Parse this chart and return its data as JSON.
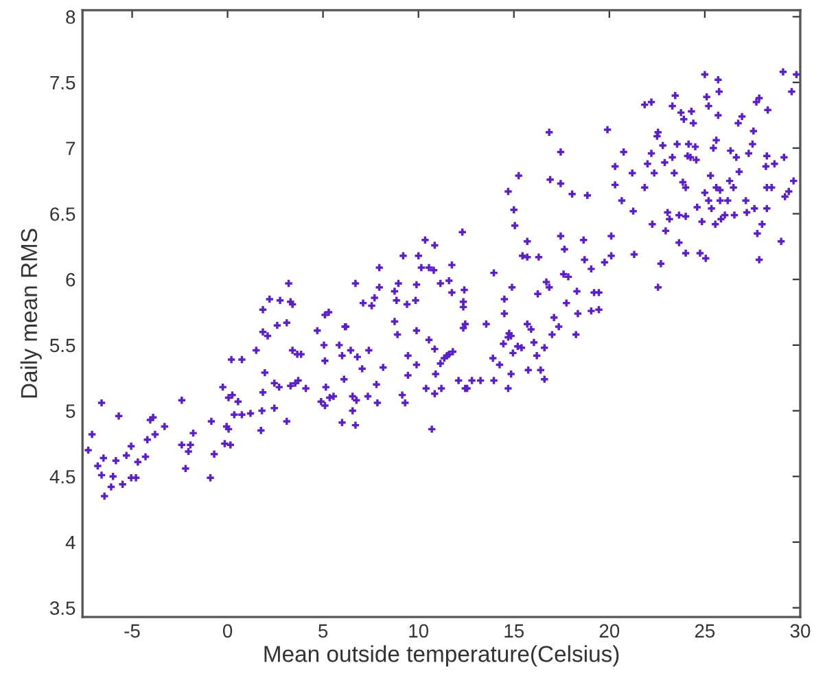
{
  "chart_data": {
    "type": "scatter",
    "xlabel": "Mean outside temperature(Celsius)",
    "ylabel": "Daily mean RMS",
    "xlim": [
      -7.6,
      30
    ],
    "ylim": [
      3.43,
      8.05
    ],
    "xticks": [
      -5,
      0,
      5,
      10,
      15,
      20,
      25,
      30
    ],
    "yticks": [
      3.5,
      4,
      4.5,
      5,
      5.5,
      6,
      6.5,
      7,
      7.5,
      8
    ],
    "grid": false,
    "marker": "cross",
    "series": [
      {
        "color": "#5b1fc4",
        "x": [
          -7.3,
          -7.1,
          -6.6,
          -6.8,
          -6.6,
          -6.5,
          -6.45,
          -6.1,
          -6.0,
          -5.85,
          -5.7,
          -5.5,
          -5.3,
          -5.05,
          -5.05,
          -4.8,
          -4.7,
          -4.3,
          -4.2,
          -4.05,
          -3.9,
          -3.8,
          -3.3,
          -2.4,
          -2.4,
          -2.2,
          -2.05,
          -1.95,
          -1.8,
          -0.9,
          -0.85,
          -0.7,
          -0.25,
          -0.05,
          0.05,
          -0.15,
          0.15,
          0.05,
          0.25,
          0.55,
          0.2,
          0.75,
          0.35,
          0.75,
          1.2,
          1.5,
          1.75,
          1.8,
          1.85,
          1.95,
          1.85,
          2.1,
          2.45,
          2.45,
          2.6,
          2.7,
          3.1,
          3.1,
          3.3,
          3.4,
          3.55,
          3.65,
          3.85,
          3.7,
          4.1,
          4.7,
          5.05,
          5.1,
          5.15,
          4.9,
          5.1,
          5.35,
          5.55,
          5.85,
          6.0,
          6.15,
          6.1,
          6.45,
          6.55,
          6.55,
          6.0,
          6.7,
          6.75,
          7.05,
          6.8,
          7.4,
          7.35,
          7.8,
          7.85,
          8.15,
          8.75,
          8.9,
          9.15,
          9.3,
          9.45,
          9.45,
          9.9,
          9.9,
          10.4,
          10.55,
          10.7,
          10.85,
          10.9,
          10.85,
          11.15,
          11.2,
          11.5,
          11.8,
          12.1,
          12.45,
          1.85,
          2.2,
          2.75,
          3.2,
          3.3,
          3.4,
          5.1,
          5.3,
          6.2,
          6.7,
          7.1,
          7.55,
          7.7,
          7.95,
          7.95,
          8.75,
          8.95,
          9.2,
          8.85,
          9.4,
          9.85,
          9.9,
          10.0,
          10.15,
          10.55,
          10.8,
          10.35,
          10.85,
          11.15,
          11.6,
          11.75,
          11.75,
          12.3,
          12.4,
          12.35,
          12.35,
          12.45,
          13.55,
          13.95,
          14.9,
          14.5,
          14.5,
          14.7,
          15.0,
          15.05,
          15.25,
          15.45,
          15.7,
          15.7,
          16.3,
          16.25,
          16.7,
          16.85,
          16.85,
          16.9,
          17.45,
          17.45,
          17.45,
          17.65,
          17.6,
          17.85,
          17.75,
          18.3,
          18.35,
          18.05,
          18.65,
          18.7,
          18.85,
          19.05,
          19.2,
          19.45,
          19.05,
          19.45,
          19.75,
          19.9,
          20.1,
          20.1,
          20.3,
          20.3,
          20.65,
          20.75,
          21.2,
          21.25,
          21.3,
          21.85,
          22.2,
          21.85,
          22.0,
          22.2,
          22.35,
          22.5,
          22.55,
          22.25,
          22.55,
          22.7,
          22.8,
          22.9,
          22.95,
          23.05,
          23.15,
          23.3,
          23.45,
          23.3,
          23.4,
          23.55,
          23.65,
          23.75,
          23.85,
          23.9,
          24.0,
          24.1,
          24.15,
          24.0,
          24.0,
          23.65,
          24.25,
          24.3,
          24.4,
          24.5,
          24.55,
          24.6,
          24.75,
          24.85,
          25.0,
          25.0,
          25.05,
          25.1,
          25.2,
          25.2,
          25.35,
          25.3,
          25.45,
          25.6,
          25.6,
          25.7,
          25.75,
          25.7,
          25.8,
          25.8,
          25.55,
          25.85,
          26.05,
          26.2,
          26.3,
          26.35,
          26.5,
          26.55,
          26.65,
          26.75,
          26.8,
          26.95,
          27.15,
          27.2,
          27.3,
          27.55,
          27.5,
          27.6,
          27.7,
          27.75,
          27.85,
          27.85,
          28.0,
          28.2,
          28.25,
          28.25,
          28.3,
          28.25,
          28.5,
          28.65,
          29.0,
          29.1,
          29.15,
          29.2,
          29.4,
          29.55,
          29.65,
          29.8,
          11.35,
          11.6,
          12.35,
          12.55,
          12.8,
          13.25,
          13.9,
          13.95,
          14.25,
          14.45,
          14.7,
          14.75,
          14.85,
          14.95,
          14.7,
          14.85,
          15.2,
          15.4,
          15.7,
          15.9,
          15.75,
          16.05,
          16.2,
          16.4,
          16.6,
          16.6,
          17.0,
          17.1,
          17.35,
          18.25
        ],
        "values": [
          4.7,
          4.82,
          5.06,
          4.58,
          4.51,
          4.64,
          4.35,
          4.42,
          4.5,
          4.62,
          4.96,
          4.44,
          4.66,
          4.73,
          4.49,
          4.49,
          4.61,
          4.65,
          4.78,
          4.93,
          4.95,
          4.82,
          4.88,
          5.08,
          4.74,
          4.56,
          4.69,
          4.74,
          4.83,
          4.49,
          4.92,
          4.67,
          5.18,
          4.88,
          4.86,
          4.75,
          4.74,
          5.1,
          5.12,
          5.07,
          5.39,
          5.39,
          4.97,
          4.97,
          4.98,
          5.46,
          4.85,
          5.0,
          5.14,
          5.29,
          5.6,
          5.57,
          5.21,
          5.02,
          5.65,
          5.18,
          5.67,
          4.92,
          5.19,
          5.46,
          5.21,
          5.43,
          5.43,
          5.23,
          5.17,
          5.61,
          5.5,
          5.38,
          5.18,
          5.07,
          5.04,
          5.1,
          5.11,
          5.5,
          5.42,
          5.64,
          5.24,
          5.46,
          5.11,
          5.0,
          4.91,
          4.89,
          5.08,
          5.32,
          5.41,
          5.46,
          5.11,
          5.2,
          5.06,
          5.33,
          5.68,
          5.58,
          5.12,
          5.06,
          5.42,
          5.27,
          5.61,
          5.35,
          5.17,
          5.54,
          4.86,
          5.47,
          5.28,
          5.13,
          5.36,
          5.17,
          5.42,
          5.45,
          5.23,
          5.17,
          5.77,
          5.85,
          5.84,
          5.97,
          5.83,
          5.81,
          5.73,
          5.75,
          5.64,
          5.97,
          5.82,
          5.8,
          5.86,
          5.94,
          6.09,
          5.91,
          5.97,
          6.18,
          5.84,
          5.81,
          5.84,
          5.96,
          6.18,
          6.09,
          6.09,
          6.07,
          6.3,
          6.26,
          5.97,
          5.99,
          6.11,
          5.9,
          6.36,
          5.92,
          5.83,
          5.79,
          5.66,
          5.66,
          6.05,
          5.94,
          5.85,
          5.74,
          6.67,
          6.53,
          6.41,
          6.79,
          6.18,
          6.29,
          6.17,
          6.17,
          5.89,
          5.98,
          5.94,
          7.12,
          6.76,
          6.97,
          6.73,
          6.33,
          6.23,
          6.04,
          6.02,
          5.82,
          5.91,
          5.74,
          6.65,
          6.3,
          6.15,
          6.64,
          6.08,
          5.9,
          5.9,
          5.76,
          5.77,
          6.13,
          7.14,
          6.33,
          6.18,
          6.86,
          6.72,
          6.6,
          6.97,
          6.81,
          6.52,
          6.19,
          7.33,
          7.35,
          6.7,
          6.88,
          6.96,
          6.81,
          7.09,
          7.12,
          6.42,
          5.94,
          6.12,
          7.02,
          6.89,
          6.37,
          6.51,
          6.46,
          7.32,
          7.4,
          6.93,
          6.81,
          7.03,
          6.49,
          7.27,
          6.74,
          7.22,
          6.7,
          6.94,
          7.03,
          6.48,
          6.2,
          6.28,
          6.93,
          7.28,
          7.19,
          7.01,
          6.91,
          6.55,
          6.2,
          6.44,
          7.56,
          6.66,
          6.16,
          7.39,
          7.32,
          6.6,
          6.54,
          6.79,
          7.0,
          7.06,
          6.7,
          7.52,
          7.43,
          7.25,
          6.6,
          6.68,
          6.42,
          6.46,
          6.49,
          6.6,
          6.75,
          6.98,
          6.7,
          6.49,
          6.93,
          7.19,
          6.82,
          7.24,
          6.6,
          6.51,
          6.96,
          7.13,
          7.03,
          6.54,
          7.35,
          6.35,
          7.38,
          6.15,
          6.42,
          6.86,
          6.94,
          6.7,
          7.29,
          6.54,
          6.7,
          6.88,
          6.29,
          7.58,
          6.93,
          6.63,
          6.67,
          7.43,
          6.75,
          7.56,
          5.4,
          5.43,
          5.63,
          5.17,
          5.23,
          5.23,
          5.4,
          5.23,
          5.35,
          5.51,
          5.56,
          5.59,
          5.57,
          5.44,
          5.17,
          5.28,
          5.49,
          5.48,
          5.66,
          5.62,
          5.31,
          5.52,
          5.42,
          5.31,
          5.24,
          5.48,
          5.58,
          5.71,
          5.64,
          5.58
        ]
      }
    ]
  }
}
